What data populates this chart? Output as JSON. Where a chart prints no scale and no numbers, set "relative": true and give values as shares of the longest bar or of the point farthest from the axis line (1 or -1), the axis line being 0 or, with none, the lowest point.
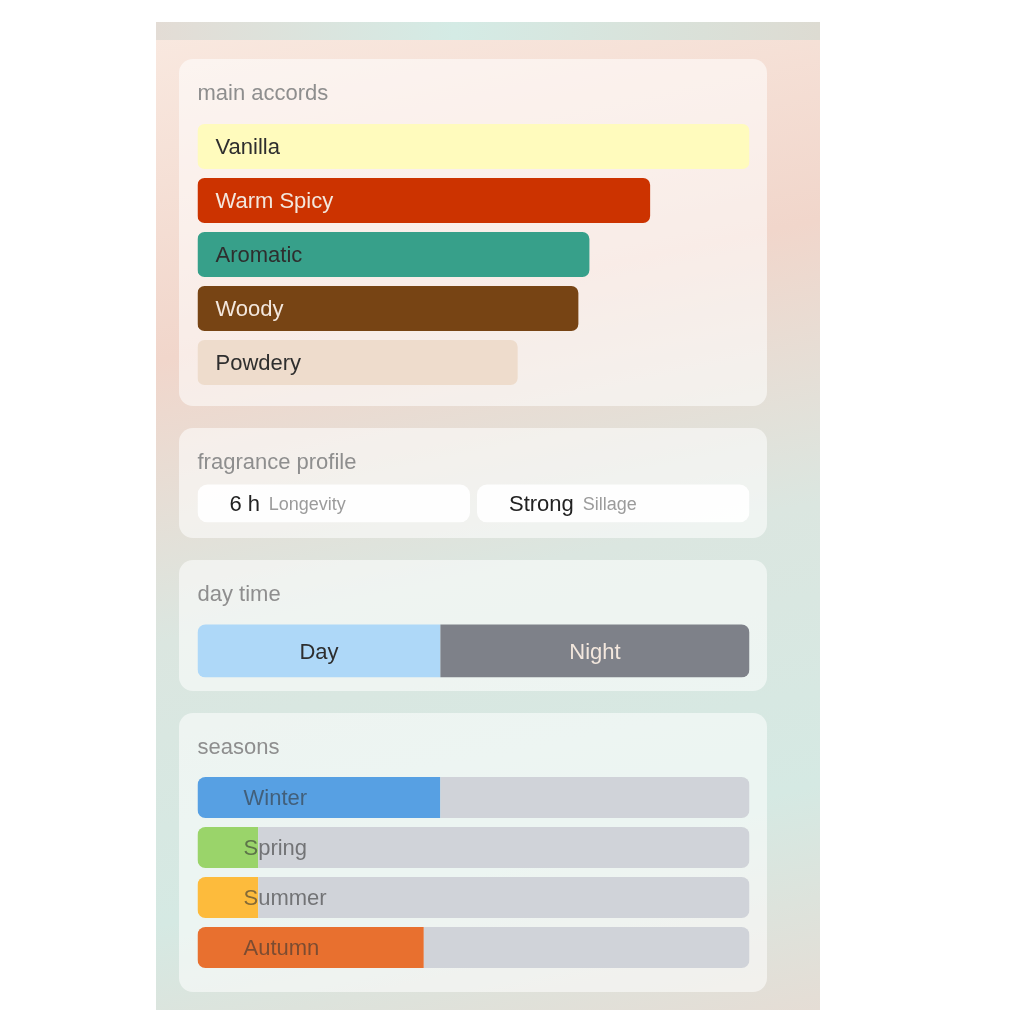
{
  "chart_data": [
    {
      "type": "bar",
      "title": "main accords",
      "orientation": "horizontal",
      "relative": true,
      "categories": [
        "Vanilla",
        "Warm Spicy",
        "Aromatic",
        "Woody",
        "Powdery"
      ],
      "values": [
        1,
        0.82,
        0.71,
        0.69,
        0.58
      ],
      "colors": [
        "#fffbbd",
        "#cc3300",
        "#37a08a",
        "#774414",
        "#eedccc"
      ]
    },
    {
      "type": "other",
      "title": "fragrance profile",
      "annotations": [
        "6 h",
        "Longevity",
        "Strong",
        "Sillage"
      ]
    },
    {
      "type": "bar",
      "title": "day time",
      "orientation": "horizontal",
      "relative": true,
      "stacked": true,
      "categories": [
        null
      ],
      "series": [
        {
          "name": "Day",
          "color": "#aed8f8",
          "values": [
            0.44
          ]
        },
        {
          "name": "Night",
          "color": "#7e8189",
          "values": [
            0.56
          ]
        }
      ]
    },
    {
      "type": "bar",
      "title": "seasons",
      "orientation": "horizontal",
      "relative": true,
      "stacked": true,
      "categories": [
        "Winter",
        "Spring",
        "Summer",
        "Autumn"
      ],
      "series": [
        {
          "colors": [
            "#57a0e3",
            "#9ad46a",
            "#fdbb3c",
            "#e8702f"
          ],
          "values": [
            0.44,
            0.11,
            0.11,
            0.41
          ]
        },
        {
          "color": "#d0d3d9",
          "values": [
            0.56,
            0.89,
            0.89,
            0.59
          ]
        }
      ]
    }
  ]
}
